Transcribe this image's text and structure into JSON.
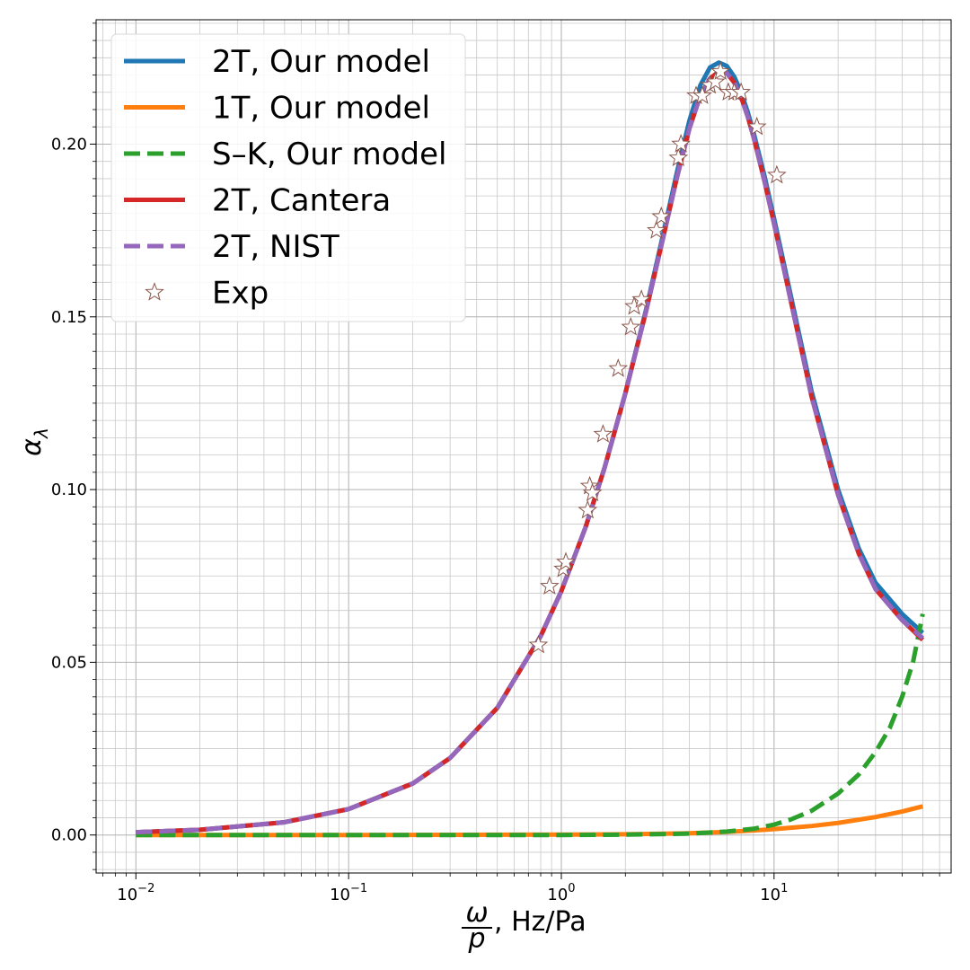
{
  "chart_data": {
    "type": "line",
    "title": "",
    "xlabel": {
      "frac_top": "ω",
      "frac_bottom": "p",
      "suffix": ", Hz/Pa"
    },
    "ylabel": {
      "base": "α",
      "sub": "λ"
    },
    "xscale": "log",
    "xlim": [
      0.0065,
      68
    ],
    "ylim": [
      -0.011,
      0.236
    ],
    "grid": true,
    "legend_position": "top-left",
    "x_ticks": [
      {
        "value": 0.01,
        "base": "10",
        "exp": "−2"
      },
      {
        "value": 0.1,
        "base": "10",
        "exp": "−1"
      },
      {
        "value": 1,
        "base": "10",
        "exp": "0"
      },
      {
        "value": 10,
        "base": "10",
        "exp": "1"
      }
    ],
    "y_ticks": [
      {
        "value": 0.0,
        "label": "0.00"
      },
      {
        "value": 0.05,
        "label": "0.05"
      },
      {
        "value": 0.1,
        "label": "0.10"
      },
      {
        "value": 0.15,
        "label": "0.15"
      },
      {
        "value": 0.2,
        "label": "0.20"
      }
    ],
    "series": [
      {
        "name": "2T, Our model",
        "color": "#1f77b4",
        "style": "solid",
        "x": [
          0.01,
          0.02,
          0.05,
          0.1,
          0.2,
          0.3,
          0.5,
          0.8,
          1.0,
          1.3,
          1.6,
          2.0,
          2.5,
          3.0,
          3.5,
          4.0,
          4.5,
          5.0,
          5.5,
          6.0,
          6.5,
          7.0,
          7.5,
          8.0,
          9.0,
          10.0,
          12.0,
          15.0,
          20.0,
          25.0,
          30.0,
          40.0,
          50.0
        ],
        "y": [
          0.0008,
          0.0015,
          0.0037,
          0.0075,
          0.0149,
          0.0223,
          0.0368,
          0.0576,
          0.0706,
          0.0891,
          0.1065,
          0.1279,
          0.152,
          0.1735,
          0.192,
          0.2068,
          0.217,
          0.2222,
          0.2236,
          0.2226,
          0.2195,
          0.215,
          0.2095,
          0.2035,
          0.191,
          0.1785,
          0.156,
          0.1285,
          0.1,
          0.083,
          0.073,
          0.064,
          0.0585
        ]
      },
      {
        "name": "1T, Our model",
        "color": "#ff7f0e",
        "style": "solid",
        "x": [
          0.01,
          0.1,
          1,
          2,
          4,
          6,
          8,
          10,
          15,
          20,
          30,
          40,
          50
        ],
        "y": [
          0.0,
          0.0,
          0.0001,
          0.0002,
          0.0005,
          0.0009,
          0.0013,
          0.0017,
          0.0026,
          0.0035,
          0.0052,
          0.0068,
          0.0083
        ]
      },
      {
        "name": "S–K, Our model",
        "color": "#2ca02c",
        "style": "dashed",
        "x": [
          0.01,
          0.1,
          1,
          2,
          4,
          6,
          8,
          10,
          12,
          15,
          20,
          25,
          30,
          35,
          40,
          45,
          50
        ],
        "y": [
          0.0,
          0.0,
          0.0,
          0.0001,
          0.0004,
          0.001,
          0.0018,
          0.003,
          0.0045,
          0.007,
          0.012,
          0.0175,
          0.024,
          0.031,
          0.04,
          0.05,
          0.064
        ]
      },
      {
        "name": "2T, Cantera",
        "color": "#d62728",
        "style": "solid",
        "x": [
          0.01,
          0.02,
          0.05,
          0.1,
          0.2,
          0.3,
          0.5,
          0.8,
          1.0,
          1.3,
          1.6,
          2.0,
          2.5,
          3.0,
          3.5,
          4.0,
          4.5,
          5.0,
          5.5,
          6.0,
          6.5,
          7.0,
          7.5,
          8.0,
          9.0,
          10.0,
          12.0,
          15.0,
          20.0,
          25.0,
          30.0,
          40.0,
          50.0
        ],
        "y": [
          0.0008,
          0.0015,
          0.0037,
          0.0075,
          0.0149,
          0.0223,
          0.0368,
          0.0576,
          0.0706,
          0.0891,
          0.1065,
          0.1279,
          0.1515,
          0.1725,
          0.1905,
          0.2045,
          0.214,
          0.219,
          0.221,
          0.2205,
          0.2178,
          0.2136,
          0.2082,
          0.2022,
          0.1895,
          0.177,
          0.1545,
          0.127,
          0.0985,
          0.0815,
          0.0712,
          0.0622,
          0.0565
        ]
      },
      {
        "name": "2T, NIST",
        "color": "#9467bd",
        "style": "dashed",
        "x": [
          0.01,
          0.02,
          0.05,
          0.1,
          0.2,
          0.3,
          0.5,
          0.8,
          1.0,
          1.3,
          1.6,
          2.0,
          2.5,
          3.0,
          3.5,
          4.0,
          4.5,
          5.0,
          5.5,
          6.0,
          6.5,
          7.0,
          7.5,
          8.0,
          9.0,
          10.0,
          12.0,
          15.0,
          20.0,
          25.0,
          30.0,
          40.0,
          50.0
        ],
        "y": [
          0.0008,
          0.0015,
          0.0037,
          0.0075,
          0.0149,
          0.0223,
          0.0368,
          0.0576,
          0.0706,
          0.0891,
          0.1065,
          0.1279,
          0.1515,
          0.1725,
          0.1905,
          0.2045,
          0.214,
          0.219,
          0.221,
          0.2205,
          0.2178,
          0.2136,
          0.2082,
          0.2022,
          0.1895,
          0.177,
          0.1545,
          0.127,
          0.0985,
          0.0815,
          0.0712,
          0.0622,
          0.057
        ]
      }
    ],
    "scatter": {
      "name": "Exp",
      "marker": "star",
      "edge_color": "#8c564b",
      "face_color": "#ffffff",
      "points": [
        [
          0.78,
          0.055
        ],
        [
          0.88,
          0.072
        ],
        [
          1.02,
          0.077
        ],
        [
          1.05,
          0.079
        ],
        [
          1.33,
          0.094
        ],
        [
          1.36,
          0.101
        ],
        [
          1.4,
          0.099
        ],
        [
          1.57,
          0.116
        ],
        [
          1.85,
          0.135
        ],
        [
          2.12,
          0.147
        ],
        [
          2.2,
          0.153
        ],
        [
          2.38,
          0.155
        ],
        [
          2.8,
          0.175
        ],
        [
          2.95,
          0.179
        ],
        [
          3.55,
          0.196
        ],
        [
          3.65,
          0.2
        ],
        [
          4.3,
          0.214
        ],
        [
          4.6,
          0.214
        ],
        [
          5.0,
          0.217
        ],
        [
          5.3,
          0.218
        ],
        [
          5.6,
          0.221
        ],
        [
          6.1,
          0.215
        ],
        [
          6.5,
          0.215
        ],
        [
          7.0,
          0.215
        ],
        [
          8.3,
          0.205
        ],
        [
          10.3,
          0.191
        ]
      ]
    }
  }
}
